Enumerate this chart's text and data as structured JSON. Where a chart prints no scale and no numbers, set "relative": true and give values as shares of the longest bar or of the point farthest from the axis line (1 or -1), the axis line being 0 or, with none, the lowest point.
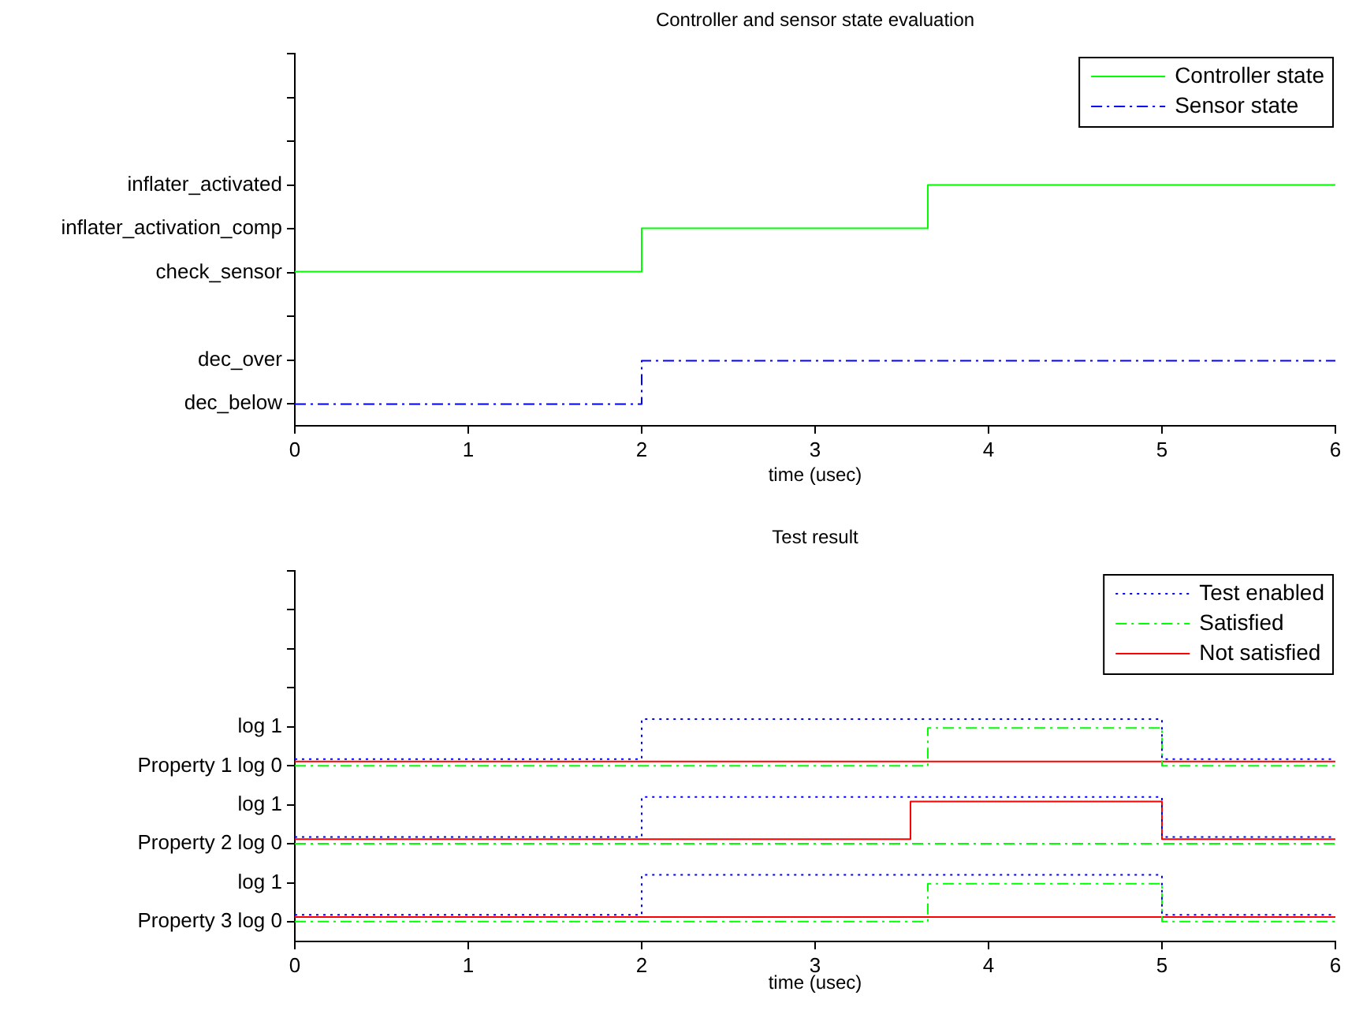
{
  "chart_data": [
    {
      "type": "step",
      "title": "Controller and sensor state evaluation",
      "xlabel": "time (usec)",
      "xlim": [
        0,
        6
      ],
      "xticks": [
        0,
        1,
        2,
        3,
        4,
        5,
        6
      ],
      "relative": true,
      "y_categories": [
        null,
        null,
        null,
        "inflater_activated",
        "inflater_activation_comp",
        "check_sensor",
        null,
        "dec_over",
        "dec_below"
      ],
      "grid": false,
      "legend": "top right",
      "series": [
        {
          "name": "Controller state",
          "color": "#00ff00",
          "line_style": "solid",
          "x": [
            0,
            2,
            3.65,
            6
          ],
          "values": [
            0.64,
            0.82,
            1,
            1
          ]
        },
        {
          "name": "Sensor state",
          "color": "#0000ff",
          "line_style": "dashed",
          "x": [
            0,
            2,
            6
          ],
          "values": [
            0.09,
            0.27,
            0.27
          ]
        }
      ]
    },
    {
      "type": "step",
      "title": "Test result",
      "xlabel": "time (usec)",
      "xlim": [
        0,
        6
      ],
      "xticks": [
        0,
        1,
        2,
        3,
        4,
        5,
        6
      ],
      "relative": true,
      "y_categories": [
        null,
        null,
        null,
        null,
        "log 1",
        "Property 1 log 0",
        "log 1",
        "Property 2 log 0",
        "log 1",
        "Property 3 log 0"
      ],
      "grid": false,
      "legend": "top right",
      "series": [
        {
          "name": "Test enabled",
          "color": "#0000ff",
          "line_style": "dotted",
          "x": [
            0,
            2,
            5,
            6
          ],
          "values": [
            0.82,
            1,
            0.82,
            0.82
          ]
        },
        {
          "name": "Satisfied",
          "color": "#00ff00",
          "line_style": "dashed",
          "x": [
            0,
            3.65,
            5,
            6
          ],
          "values": [
            0.79,
            0.96,
            0.79,
            0.79
          ]
        },
        {
          "name": "Not satisfied",
          "color": "#ff0000",
          "line_style": "solid",
          "x": [
            0,
            6
          ],
          "values": [
            0.81,
            0.81
          ]
        },
        {
          "color": "#0000ff",
          "line_style": "dotted",
          "x": [
            0,
            2,
            5,
            6
          ],
          "values": [
            0.47,
            0.65,
            0.47,
            0.47
          ]
        },
        {
          "color": "#00ff00",
          "line_style": "dashed",
          "x": [
            0,
            6
          ],
          "values": [
            0.44,
            0.44
          ]
        },
        {
          "color": "#ff0000",
          "line_style": "solid",
          "x": [
            0,
            3.55,
            5,
            6
          ],
          "values": [
            0.46,
            0.63,
            0.46,
            0.46
          ]
        },
        {
          "color": "#0000ff",
          "line_style": "dotted",
          "x": [
            0,
            2,
            5,
            6
          ],
          "values": [
            0.12,
            0.3,
            0.12,
            0.12
          ]
        },
        {
          "color": "#00ff00",
          "line_style": "dashed",
          "x": [
            0,
            3.65,
            5,
            6
          ],
          "values": [
            0.09,
            0.26,
            0.09,
            0.09
          ]
        },
        {
          "color": "#ff0000",
          "line_style": "solid",
          "x": [
            0,
            6
          ],
          "values": [
            0.11,
            0.11
          ]
        }
      ]
    }
  ]
}
